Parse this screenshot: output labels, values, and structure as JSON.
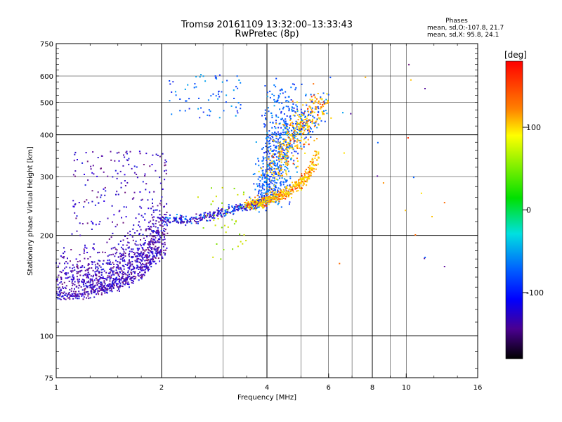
{
  "chart_data": {
    "type": "scatter",
    "title": "Tromsø 20161109 13:32:00–13:33:43",
    "subtitle": "RwPretec (8p)",
    "xlabel": "Frequency [MHz]",
    "ylabel": "Stationary phase Virtual Height [km]",
    "x_scale": "log",
    "y_scale": "log",
    "xlim": [
      1,
      16
    ],
    "ylim": [
      75,
      750
    ],
    "x_ticks": [
      1,
      2,
      4,
      6,
      8,
      10,
      16
    ],
    "x_tick_labels": [
      "1",
      "2",
      "4",
      "6",
      "8",
      "10",
      "16"
    ],
    "x_grid_major": [
      2,
      4,
      8
    ],
    "x_grid_minor": [
      3,
      5,
      6,
      7,
      9,
      10
    ],
    "y_ticks": [
      75,
      100,
      200,
      300,
      400,
      500,
      600,
      750
    ],
    "y_tick_labels": [
      "75",
      "100",
      "200",
      "300",
      "400",
      "500",
      "600",
      "750"
    ],
    "y_grid_major": [
      100,
      200,
      400
    ],
    "y_grid_minor": [
      300,
      500,
      600
    ],
    "grid": true,
    "phase_stats": {
      "heading": "Phases",
      "o_line": "mean, sd,O:-107.8, 21.7",
      "x_line": "mean, sd,X:  95.8, 24.1"
    },
    "colorbar": {
      "label": "[deg]",
      "range": [
        -180,
        180
      ],
      "tick_labels": [
        "100",
        "0",
        "-100"
      ],
      "tick_values": [
        100,
        0,
        -100
      ]
    },
    "series": [
      {
        "name": "O",
        "color_phase": "mean -107.8 deg",
        "traces": [
          {
            "x": [
              1.0,
              1.1,
              1.2,
              1.3,
              1.4,
              1.5,
              1.6,
              1.7,
              1.8,
              1.9,
              2.0
            ],
            "y": [
              130,
              131,
              133,
              135,
              138,
              140,
              145,
              150,
              160,
              170,
              180
            ]
          },
          {
            "x": [
              2.0,
              2.2,
              2.4,
              2.6,
              2.8,
              3.0,
              3.2,
              3.4,
              3.6,
              3.8,
              4.0
            ],
            "y": [
              225,
              222,
              222,
              225,
              230,
              235,
              240,
              243,
              246,
              250,
              255
            ]
          },
          {
            "x": [
              4.0,
              4.1,
              4.2,
              4.3,
              4.4,
              4.5
            ],
            "y": [
              255,
              280,
              320,
              380,
              450,
              540
            ]
          }
        ]
      },
      {
        "name": "X",
        "color_phase": "mean 95.8 deg",
        "traces": [
          {
            "x": [
              3.5,
              3.8,
              4.0,
              4.3,
              4.6,
              5.0,
              5.3,
              5.6
            ],
            "y": [
              245,
              250,
              255,
              262,
              270,
              285,
              310,
              350
            ]
          },
          {
            "x": [
              4.2,
              4.5,
              4.8,
              5.1,
              5.4,
              5.7
            ],
            "y": [
              300,
              350,
              400,
              430,
              460,
              520
            ]
          }
        ]
      }
    ]
  },
  "colors": {
    "grid": "#000000",
    "frame": "#000000",
    "colorbar_stops": [
      "#ff0000",
      "#ff8000",
      "#ffff00",
      "#00e000",
      "#00e0e0",
      "#0080ff",
      "#0000ff",
      "#5000a0",
      "#000000"
    ]
  }
}
